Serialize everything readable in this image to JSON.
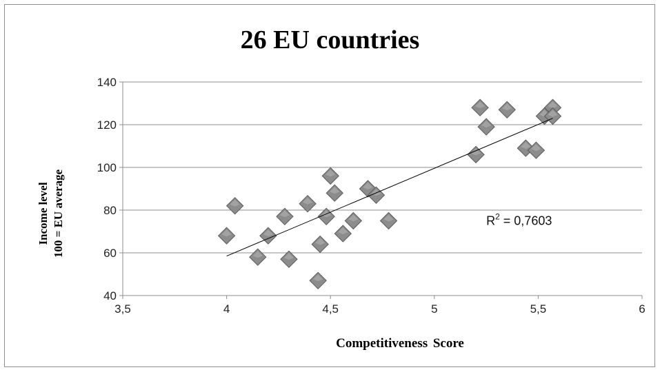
{
  "chart_data": {
    "type": "scatter",
    "title": "26 EU countries",
    "xlabel": "Competitiveness  Score",
    "ylabel_line1": "Income  level",
    "ylabel_line2": "100 = EU  average",
    "xlim": [
      3.5,
      6
    ],
    "ylim": [
      40,
      140
    ],
    "x_ticks": [
      3.5,
      4,
      4.5,
      5,
      5.5,
      6
    ],
    "x_tick_labels": [
      "3,5",
      "4",
      "4,5",
      "5",
      "5,5",
      "6"
    ],
    "y_ticks": [
      40,
      60,
      80,
      100,
      120,
      140
    ],
    "y_tick_labels": [
      "40",
      "60",
      "80",
      "100",
      "120",
      "140"
    ],
    "grid": "horizontal",
    "marker": "diamond",
    "marker_color": "#8c8c8c",
    "points": [
      {
        "x": 4.0,
        "y": 68
      },
      {
        "x": 4.04,
        "y": 82
      },
      {
        "x": 4.15,
        "y": 58
      },
      {
        "x": 4.2,
        "y": 68
      },
      {
        "x": 4.28,
        "y": 77
      },
      {
        "x": 4.3,
        "y": 57
      },
      {
        "x": 4.39,
        "y": 83
      },
      {
        "x": 4.44,
        "y": 47
      },
      {
        "x": 4.45,
        "y": 64
      },
      {
        "x": 4.48,
        "y": 77
      },
      {
        "x": 4.5,
        "y": 96
      },
      {
        "x": 4.52,
        "y": 88
      },
      {
        "x": 4.56,
        "y": 69
      },
      {
        "x": 4.61,
        "y": 75
      },
      {
        "x": 4.68,
        "y": 90
      },
      {
        "x": 4.72,
        "y": 87
      },
      {
        "x": 4.78,
        "y": 75
      },
      {
        "x": 5.2,
        "y": 106
      },
      {
        "x": 5.22,
        "y": 128
      },
      {
        "x": 5.25,
        "y": 119
      },
      {
        "x": 5.35,
        "y": 127
      },
      {
        "x": 5.44,
        "y": 109
      },
      {
        "x": 5.49,
        "y": 108
      },
      {
        "x": 5.53,
        "y": 124
      },
      {
        "x": 5.57,
        "y": 128
      },
      {
        "x": 5.57,
        "y": 124
      }
    ],
    "trendline": {
      "type": "linear",
      "x_start": 4.0,
      "y_start": 58.5,
      "x_end": 5.57,
      "y_end": 123
    },
    "annotation": {
      "r2_base": "R",
      "r2_sup": "2",
      "r2_value": " = 0,7603",
      "x": 5.25,
      "y": 75
    }
  }
}
